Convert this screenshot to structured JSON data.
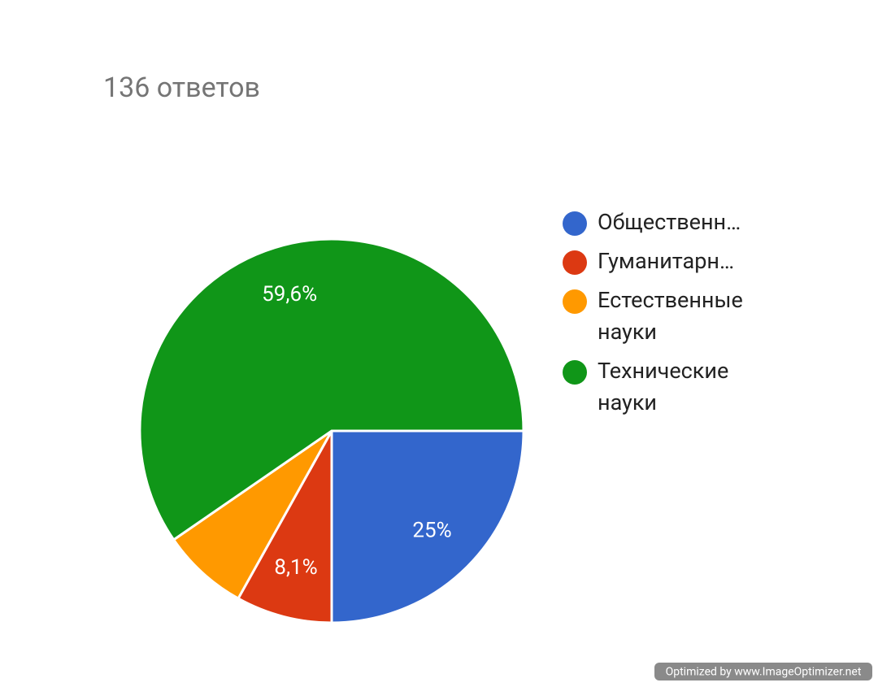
{
  "chart_data": {
    "type": "pie",
    "title": "136 ответов",
    "categories": [
      "Общественн…",
      "Гуманитарн…",
      "Естественные науки",
      "Технические науки"
    ],
    "values": [
      25,
      8.1,
      7.3,
      59.6
    ],
    "value_labels": [
      "25%",
      "8,1%",
      null,
      "59,6%"
    ],
    "colors": [
      "#3366cc",
      "#dc3912",
      "#ff9900",
      "#109618"
    ],
    "legend": "right"
  },
  "watermark": "Optimized by www.ImageOptimizer.net"
}
